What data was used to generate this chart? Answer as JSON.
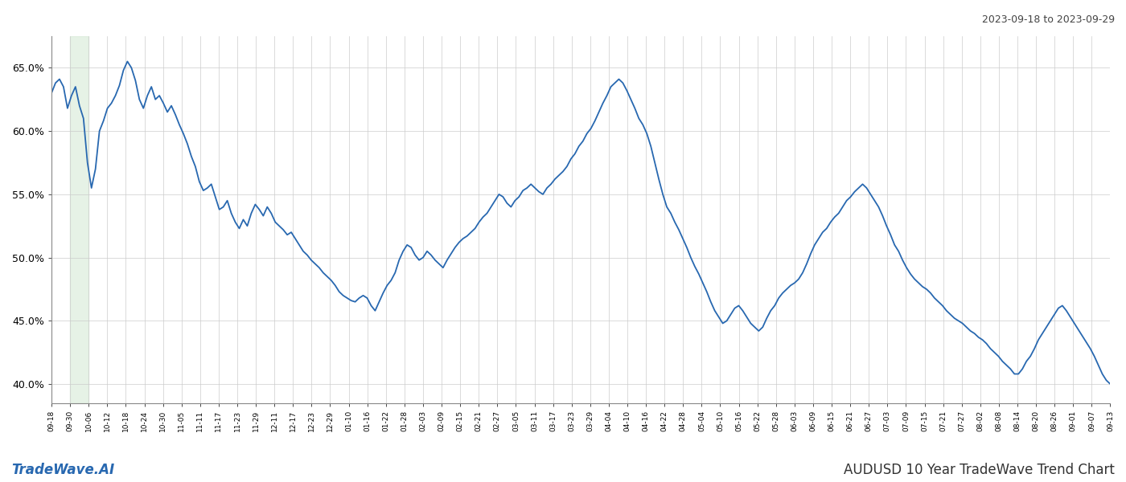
{
  "title_top_right": "2023-09-18 to 2023-09-29",
  "title_bottom_right": "AUDUSD 10 Year TradeWave Trend Chart",
  "title_bottom_left": "TradeWave.AI",
  "line_color": "#2868b0",
  "background_color": "#ffffff",
  "grid_color": "#cccccc",
  "highlight_color": "#d6ead6",
  "highlight_alpha": 0.6,
  "ylim": [
    0.385,
    0.675
  ],
  "yticks": [
    0.4,
    0.45,
    0.5,
    0.55,
    0.6,
    0.65
  ],
  "xlabel_fontsize": 6.5,
  "ylabel_fontsize": 9,
  "line_width": 1.3,
  "x_labels": [
    "09-18",
    "09-30",
    "10-06",
    "10-12",
    "10-18",
    "10-24",
    "10-30",
    "11-05",
    "11-11",
    "11-17",
    "11-23",
    "11-29",
    "12-11",
    "12-17",
    "12-23",
    "12-29",
    "01-10",
    "01-16",
    "01-22",
    "01-28",
    "02-03",
    "02-09",
    "02-15",
    "02-21",
    "02-27",
    "03-05",
    "03-11",
    "03-17",
    "03-23",
    "03-29",
    "04-04",
    "04-10",
    "04-16",
    "04-22",
    "04-28",
    "05-04",
    "05-10",
    "05-16",
    "05-22",
    "05-28",
    "06-03",
    "06-09",
    "06-15",
    "06-21",
    "06-27",
    "07-03",
    "07-09",
    "07-15",
    "07-21",
    "07-27",
    "08-02",
    "08-08",
    "08-14",
    "08-20",
    "08-26",
    "09-01",
    "09-07",
    "09-13"
  ],
  "highlight_label_start": "09-24",
  "highlight_label_end": "10-06",
  "y_values": [
    0.63,
    0.638,
    0.641,
    0.635,
    0.618,
    0.628,
    0.635,
    0.62,
    0.61,
    0.575,
    0.555,
    0.57,
    0.6,
    0.608,
    0.618,
    0.622,
    0.628,
    0.636,
    0.648,
    0.655,
    0.65,
    0.64,
    0.625,
    0.618,
    0.628,
    0.635,
    0.625,
    0.628,
    0.622,
    0.615,
    0.62,
    0.613,
    0.605,
    0.598,
    0.59,
    0.58,
    0.572,
    0.56,
    0.553,
    0.555,
    0.558,
    0.548,
    0.538,
    0.54,
    0.545,
    0.535,
    0.528,
    0.523,
    0.53,
    0.525,
    0.535,
    0.542,
    0.538,
    0.533,
    0.54,
    0.535,
    0.528,
    0.525,
    0.522,
    0.518,
    0.52,
    0.515,
    0.51,
    0.505,
    0.502,
    0.498,
    0.495,
    0.492,
    0.488,
    0.485,
    0.482,
    0.478,
    0.473,
    0.47,
    0.468,
    0.466,
    0.465,
    0.468,
    0.47,
    0.468,
    0.462,
    0.458,
    0.465,
    0.472,
    0.478,
    0.482,
    0.488,
    0.498,
    0.505,
    0.51,
    0.508,
    0.502,
    0.498,
    0.5,
    0.505,
    0.502,
    0.498,
    0.495,
    0.492,
    0.498,
    0.503,
    0.508,
    0.512,
    0.515,
    0.517,
    0.52,
    0.523,
    0.528,
    0.532,
    0.535,
    0.54,
    0.545,
    0.55,
    0.548,
    0.543,
    0.54,
    0.545,
    0.548,
    0.553,
    0.555,
    0.558,
    0.555,
    0.552,
    0.55,
    0.555,
    0.558,
    0.562,
    0.565,
    0.568,
    0.572,
    0.578,
    0.582,
    0.588,
    0.592,
    0.598,
    0.602,
    0.608,
    0.615,
    0.622,
    0.628,
    0.635,
    0.638,
    0.641,
    0.638,
    0.632,
    0.625,
    0.618,
    0.61,
    0.605,
    0.598,
    0.588,
    0.575,
    0.562,
    0.55,
    0.54,
    0.535,
    0.528,
    0.522,
    0.515,
    0.508,
    0.5,
    0.493,
    0.487,
    0.48,
    0.473,
    0.465,
    0.458,
    0.453,
    0.448,
    0.45,
    0.455,
    0.46,
    0.462,
    0.458,
    0.453,
    0.448,
    0.445,
    0.442,
    0.445,
    0.452,
    0.458,
    0.462,
    0.468,
    0.472,
    0.475,
    0.478,
    0.48,
    0.483,
    0.488,
    0.495,
    0.503,
    0.51,
    0.515,
    0.52,
    0.523,
    0.528,
    0.532,
    0.535,
    0.54,
    0.545,
    0.548,
    0.552,
    0.555,
    0.558,
    0.555,
    0.55,
    0.545,
    0.54,
    0.533,
    0.525,
    0.518,
    0.51,
    0.505,
    0.498,
    0.492,
    0.487,
    0.483,
    0.48,
    0.477,
    0.475,
    0.472,
    0.468,
    0.465,
    0.462,
    0.458,
    0.455,
    0.452,
    0.45,
    0.448,
    0.445,
    0.442,
    0.44,
    0.437,
    0.435,
    0.432,
    0.428,
    0.425,
    0.422,
    0.418,
    0.415,
    0.412,
    0.408,
    0.408,
    0.412,
    0.418,
    0.422,
    0.428,
    0.435,
    0.44,
    0.445,
    0.45,
    0.455,
    0.46,
    0.462,
    0.458,
    0.453,
    0.448,
    0.443,
    0.438,
    0.433,
    0.428,
    0.422,
    0.415,
    0.408,
    0.403,
    0.4
  ]
}
